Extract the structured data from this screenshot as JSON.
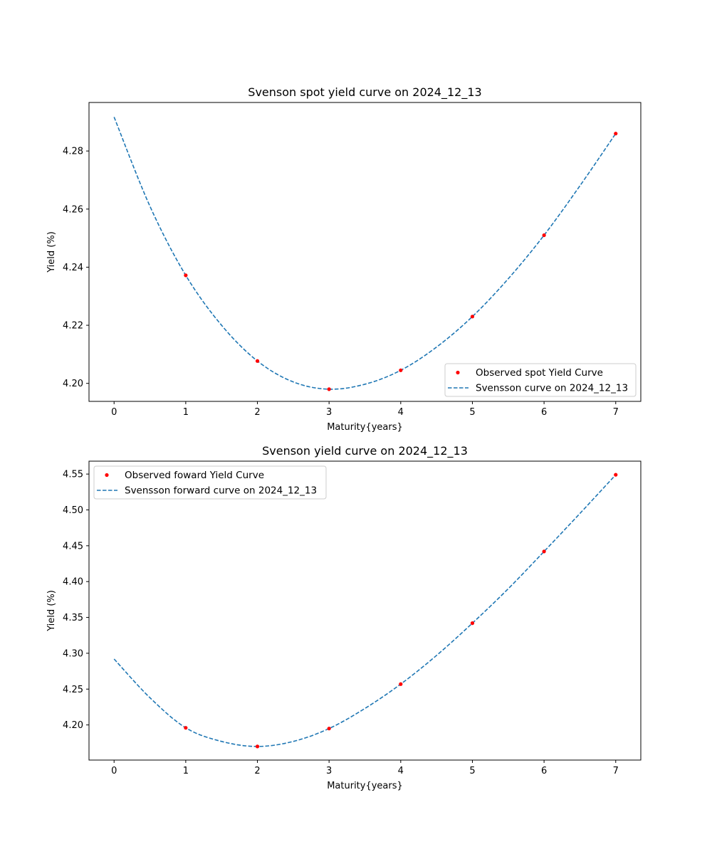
{
  "chart_data": [
    {
      "type": "scatter",
      "title": "Svenson spot yield curve on 2024_12_13",
      "xlabel": "Maturity{years}",
      "ylabel": "Yield (%)",
      "xlim": [
        -0.35,
        7.35
      ],
      "ylim": [
        4.1938,
        4.2967
      ],
      "xticks": [
        "0",
        "1",
        "2",
        "3",
        "4",
        "5",
        "6",
        "7"
      ],
      "yticks": [
        "4.20",
        "4.22",
        "4.24",
        "4.26",
        "4.28"
      ],
      "legend_position": "lower-right",
      "grid": false,
      "series": [
        {
          "name": "Observed spot Yield Curve",
          "kind": "scatter",
          "color": "#ff0000",
          "x": [
            1,
            2,
            3,
            4,
            5,
            6,
            7
          ],
          "y": [
            4.2372,
            4.2077,
            4.198,
            4.2045,
            4.223,
            4.251,
            4.286
          ]
        },
        {
          "name": "Svensson curve on 2024_12_13",
          "kind": "dashed-line",
          "color": "#1f77b4",
          "x": [
            0,
            0.5,
            1,
            1.5,
            2,
            2.5,
            3,
            3.5,
            4,
            4.5,
            5,
            5.5,
            6,
            6.5,
            7
          ],
          "y": [
            4.2917,
            4.261,
            4.2372,
            4.22,
            4.2077,
            4.2005,
            4.198,
            4.1997,
            4.2045,
            4.2125,
            4.223,
            4.236,
            4.251,
            4.268,
            4.286
          ]
        }
      ]
    },
    {
      "type": "scatter",
      "title": "Svenson yield curve on 2024_12_13",
      "xlabel": "Maturity{years}",
      "ylabel": "Yield (%)",
      "xlim": [
        -0.35,
        7.35
      ],
      "ylim": [
        4.151,
        4.568
      ],
      "xticks": [
        "0",
        "1",
        "2",
        "3",
        "4",
        "5",
        "6",
        "7"
      ],
      "yticks": [
        "4.20",
        "4.25",
        "4.30",
        "4.35",
        "4.40",
        "4.45",
        "4.50",
        "4.55"
      ],
      "legend_position": "upper-left",
      "grid": false,
      "series": [
        {
          "name": "Observed foward Yield Curve",
          "kind": "scatter",
          "color": "#ff0000",
          "x": [
            1,
            2,
            3,
            4,
            5,
            6,
            7
          ],
          "y": [
            4.196,
            4.17,
            4.195,
            4.257,
            4.342,
            4.442,
            4.549
          ]
        },
        {
          "name": "Svensson forward curve on 2024_12_13",
          "kind": "dashed-line",
          "color": "#1f77b4",
          "x": [
            0,
            0.5,
            1,
            1.5,
            2,
            2.5,
            3,
            3.5,
            4,
            4.5,
            5,
            5.5,
            6,
            6.5,
            7
          ],
          "y": [
            4.292,
            4.238,
            4.196,
            4.177,
            4.17,
            4.177,
            4.195,
            4.223,
            4.257,
            4.297,
            4.342,
            4.39,
            4.442,
            4.495,
            4.549
          ]
        }
      ]
    }
  ]
}
